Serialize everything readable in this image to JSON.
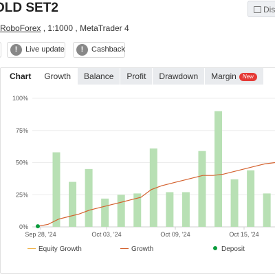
{
  "header": {
    "title": "OLD SET2",
    "discuss_label": "Disc"
  },
  "account": {
    "broker": "RoboForex",
    "rest": " , 1:1000 , MetaTrader 4"
  },
  "status_pills": [
    {
      "label": "Live update",
      "icon": "exclamation-icon"
    },
    {
      "label": "Cashback",
      "icon": "exclamation-icon"
    }
  ],
  "tabs": [
    {
      "label": "Chart"
    },
    {
      "label": "Growth"
    },
    {
      "label": "Balance"
    },
    {
      "label": "Profit"
    },
    {
      "label": "Drawdown"
    },
    {
      "label": "Margin",
      "badge": "New"
    }
  ],
  "colors": {
    "bar": "#b8e0b4",
    "growth_line": "#d4622f",
    "equity_line": "#f0b44c",
    "deposit_dot": "#0a9b3c",
    "new_badge": "#e53935"
  },
  "chart_data": {
    "type": "bar",
    "ylim": [
      0,
      100
    ],
    "y_ticks": [
      "0%",
      "25%",
      "50%",
      "75%",
      "100%"
    ],
    "x_ticks": [
      "Sep 28, '24",
      "Oct 03, '24",
      "Oct 09, '24",
      "Oct 15, '24"
    ],
    "bars": [
      58,
      35,
      45,
      22,
      25,
      26,
      61,
      27,
      27,
      59,
      90,
      37,
      44,
      26
    ],
    "growth_line": [
      0.5,
      2,
      6,
      8,
      10,
      13,
      15,
      17,
      19,
      21,
      23,
      29,
      32,
      34,
      36,
      38,
      40,
      40,
      41,
      43,
      45,
      47,
      49,
      50
    ],
    "deposit": [
      0.5
    ],
    "legend": [
      {
        "label": "Equity Growth",
        "kind": "equity"
      },
      {
        "label": "Growth",
        "kind": "growth"
      },
      {
        "label": "Deposit",
        "kind": "deposit"
      }
    ]
  }
}
